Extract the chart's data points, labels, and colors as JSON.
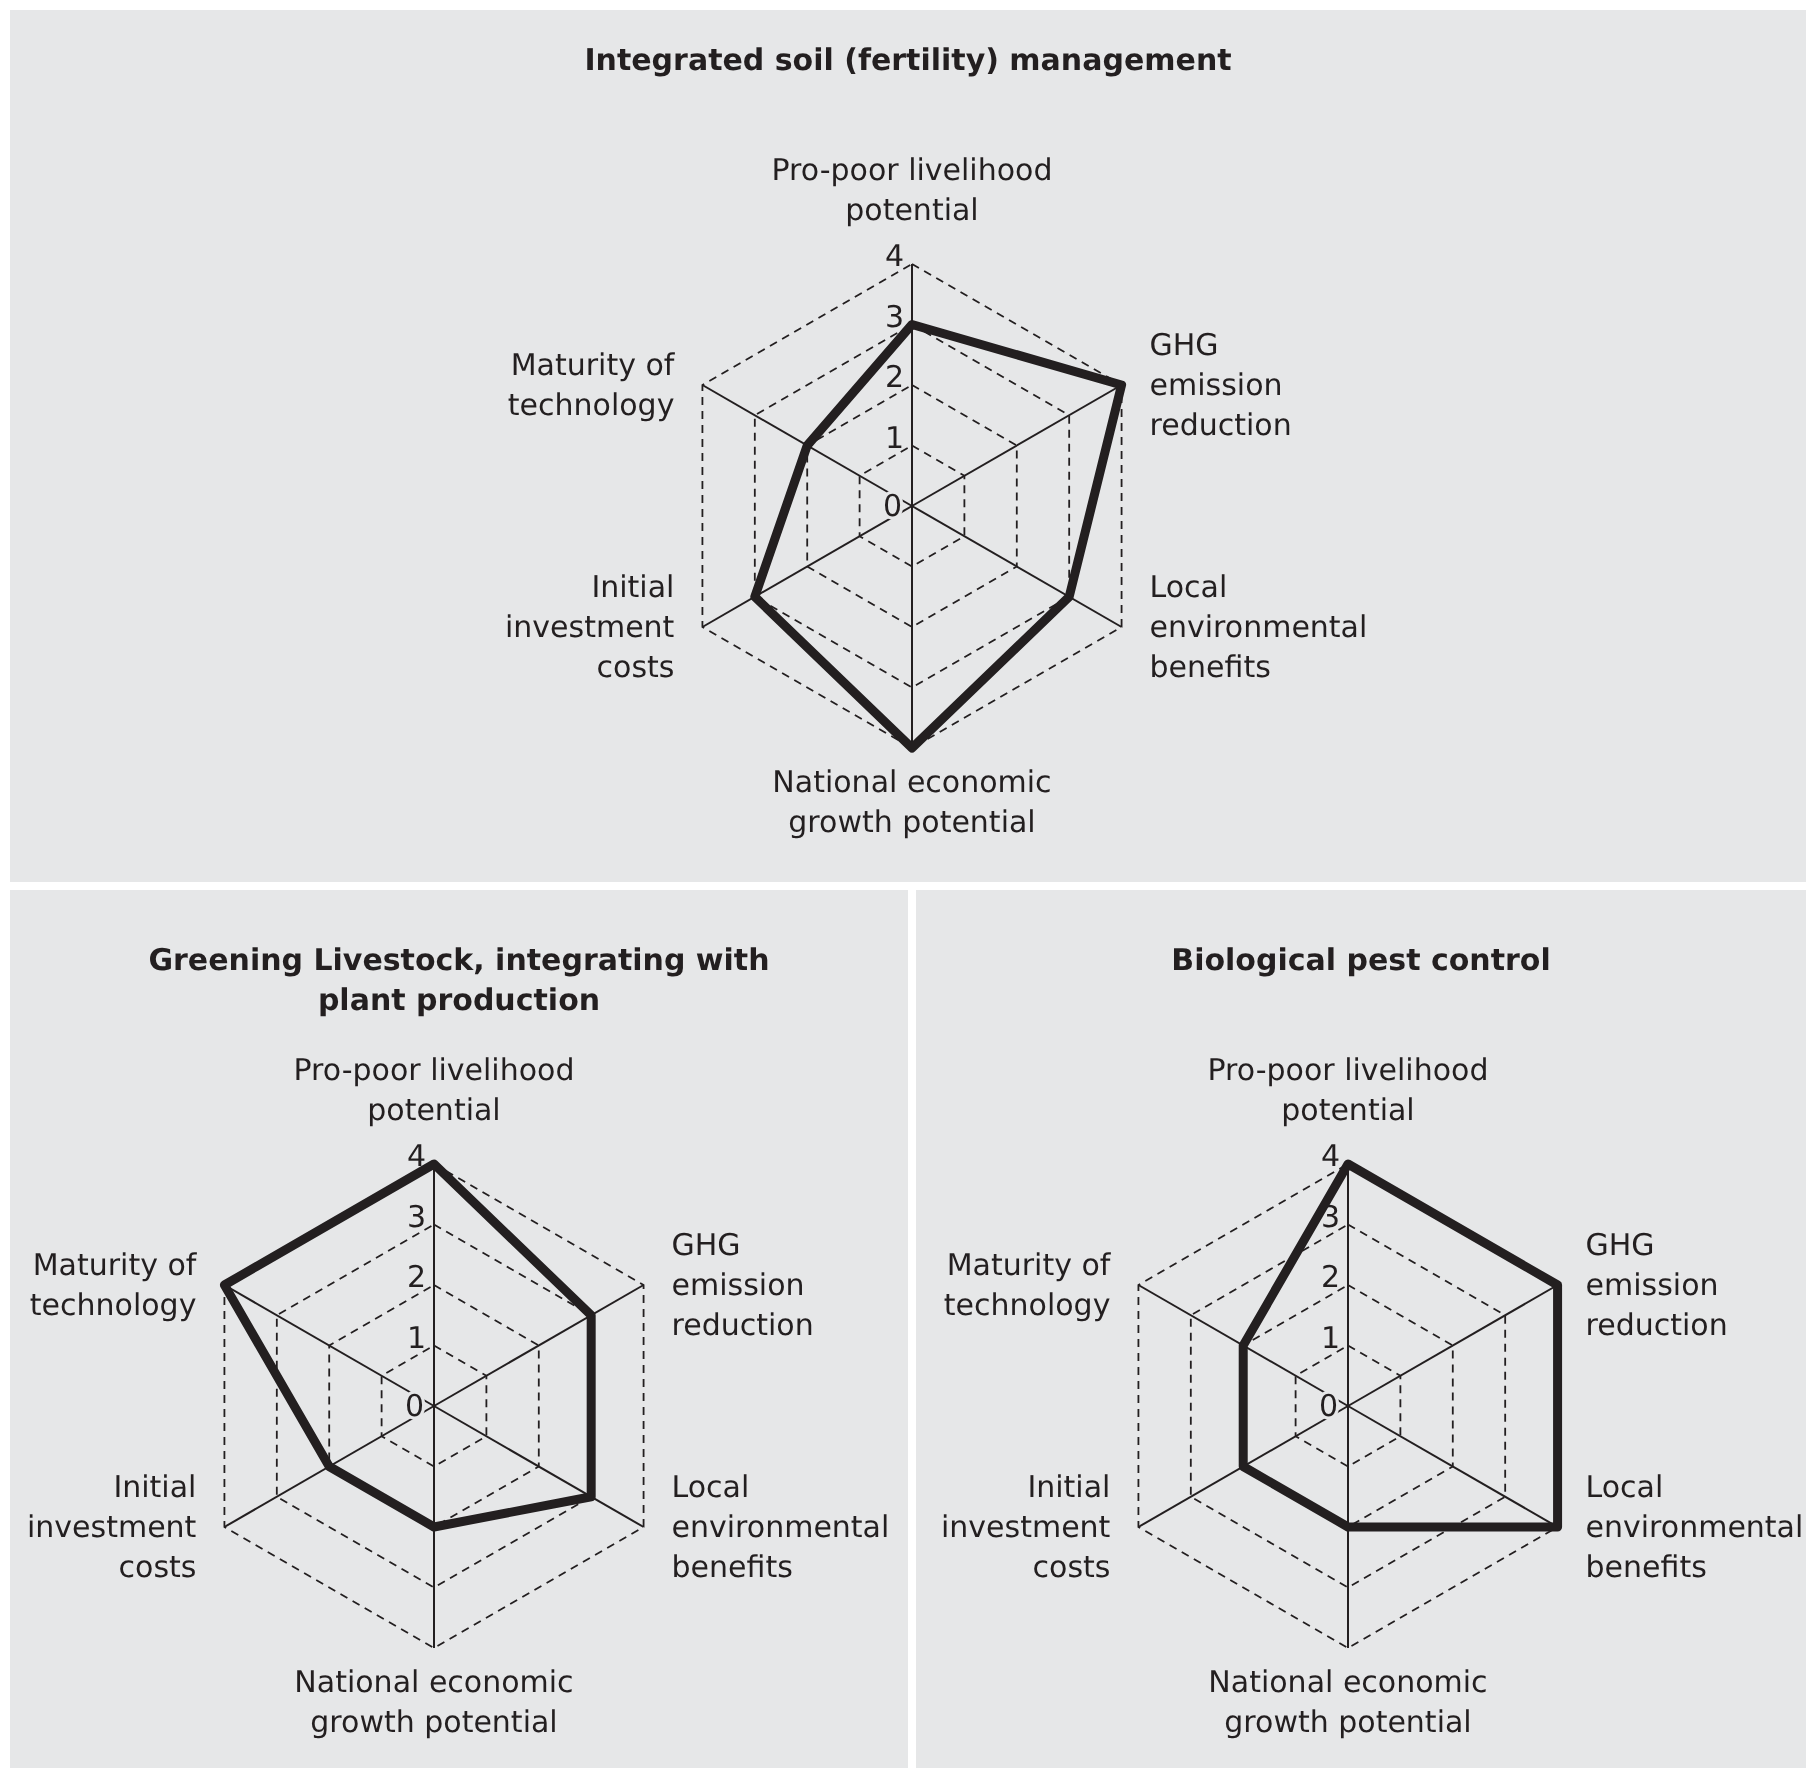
{
  "chart_data": [
    {
      "type": "radar",
      "title": "Integrated soil (fertility) management",
      "categories": [
        "Pro-poor livelihood potential",
        "GHG emission reduction",
        "Local environmental benefits",
        "National economic growth potential",
        "Initial investment costs",
        "Maturity of technology"
      ],
      "series": [
        {
          "color": "#231f20",
          "values": [
            3,
            4,
            3,
            4,
            3,
            2
          ]
        }
      ],
      "ylim": [
        0,
        4
      ],
      "yticks": [
        0,
        1,
        2,
        3,
        4
      ],
      "grid": true,
      "line_style": "solid"
    },
    {
      "type": "radar",
      "title": "Greening Livestock, integrating with plant production",
      "categories": [
        "Pro-poor livelihood potential",
        "GHG emission reduction",
        "Local environmental benefits",
        "National economic growth potential",
        "Initial investment costs",
        "Maturity of technology"
      ],
      "series": [
        {
          "color": "#231f20",
          "values": [
            4,
            3,
            3,
            2,
            2,
            4
          ]
        }
      ],
      "ylim": [
        0,
        4
      ],
      "yticks": [
        0,
        1,
        2,
        3,
        4
      ],
      "grid": true,
      "line_style": "solid"
    },
    {
      "type": "radar",
      "title": "Biological pest control",
      "categories": [
        "Pro-poor livelihood potential",
        "GHG emission reduction",
        "Local environmental benefits",
        "National economic growth potential",
        "Initial investment costs",
        "Maturity of technology"
      ],
      "series": [
        {
          "color": "#231f20",
          "values": [
            4,
            4,
            4,
            2,
            2,
            2
          ]
        }
      ],
      "ylim": [
        0,
        4
      ],
      "yticks": [
        0,
        1,
        2,
        3,
        4
      ],
      "grid": true,
      "line_style": "solid"
    }
  ]
}
